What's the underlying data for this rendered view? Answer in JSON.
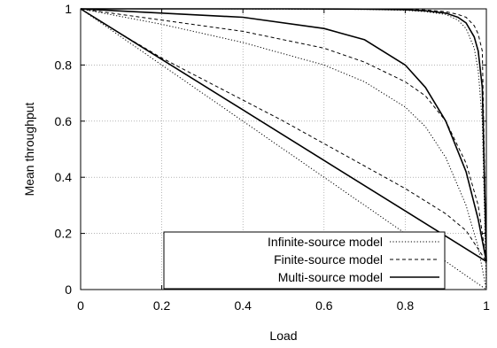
{
  "chart_data": {
    "type": "line",
    "xlabel": "Load",
    "ylabel": "Mean throughput",
    "xlim": [
      0,
      1
    ],
    "ylim": [
      0,
      1
    ],
    "xticks": [
      "0",
      "0.2",
      "0.4",
      "0.6",
      "0.8",
      "1"
    ],
    "yticks": [
      "0",
      "0.2",
      "0.4",
      "0.6",
      "0.8",
      "1"
    ],
    "grid": true,
    "legend_position": "bottom-right",
    "legend": [
      {
        "label": "Infinite-source model",
        "style": "dotted"
      },
      {
        "label": "Finite-source model",
        "style": "dashed"
      },
      {
        "label": "Multi-source model",
        "style": "solid"
      }
    ],
    "series": [
      {
        "model": "infinite",
        "style": "dotted",
        "x": [
          0,
          0.2,
          0.4,
          0.6,
          0.8,
          1.0
        ],
        "y": [
          1.0,
          0.8,
          0.6,
          0.4,
          0.2,
          0.0
        ]
      },
      {
        "model": "finite",
        "style": "dashed",
        "x": [
          0,
          0.1,
          0.2,
          0.3,
          0.4,
          0.5,
          0.6,
          0.7,
          0.8,
          0.9,
          0.95,
          1.0
        ],
        "y": [
          1.0,
          0.91,
          0.825,
          0.75,
          0.675,
          0.6,
          0.52,
          0.44,
          0.36,
          0.27,
          0.21,
          0.1
        ]
      },
      {
        "model": "multi",
        "style": "solid",
        "x": [
          0,
          0.2,
          0.4,
          0.6,
          0.8,
          1.0
        ],
        "y": [
          1.0,
          0.82,
          0.64,
          0.46,
          0.28,
          0.1
        ]
      },
      {
        "model": "infinite",
        "style": "dotted",
        "x": [
          0,
          0.2,
          0.4,
          0.6,
          0.7,
          0.8,
          0.85,
          0.9,
          0.95,
          0.98,
          1.0
        ],
        "y": [
          1.0,
          0.945,
          0.88,
          0.8,
          0.74,
          0.65,
          0.58,
          0.47,
          0.3,
          0.15,
          0.0
        ]
      },
      {
        "model": "finite",
        "style": "dashed",
        "x": [
          0,
          0.2,
          0.4,
          0.6,
          0.7,
          0.8,
          0.85,
          0.9,
          0.95,
          0.98,
          1.0
        ],
        "y": [
          1.0,
          0.96,
          0.92,
          0.86,
          0.81,
          0.74,
          0.69,
          0.6,
          0.45,
          0.3,
          0.1
        ]
      },
      {
        "model": "multi",
        "style": "solid",
        "x": [
          0,
          0.2,
          0.4,
          0.6,
          0.7,
          0.8,
          0.85,
          0.9,
          0.95,
          0.98,
          1.0
        ],
        "y": [
          1.0,
          0.985,
          0.97,
          0.93,
          0.89,
          0.8,
          0.72,
          0.6,
          0.42,
          0.25,
          0.1
        ]
      },
      {
        "model": "infinite",
        "style": "dotted",
        "x": [
          0,
          0.3,
          0.5,
          0.7,
          0.8,
          0.85,
          0.9,
          0.93,
          0.95,
          0.97,
          0.98,
          0.99,
          1.0
        ],
        "y": [
          1.0,
          1.0,
          0.999,
          0.998,
          0.995,
          0.99,
          0.98,
          0.96,
          0.93,
          0.86,
          0.78,
          0.6,
          0.0
        ]
      },
      {
        "model": "finite",
        "style": "dashed",
        "x": [
          0,
          0.3,
          0.5,
          0.7,
          0.8,
          0.85,
          0.9,
          0.93,
          0.95,
          0.97,
          0.98,
          0.99,
          1.0
        ],
        "y": [
          1.0,
          1.0,
          1.0,
          0.999,
          0.998,
          0.996,
          0.99,
          0.98,
          0.97,
          0.94,
          0.91,
          0.85,
          0.1
        ]
      },
      {
        "model": "multi",
        "style": "solid",
        "x": [
          0,
          0.3,
          0.5,
          0.7,
          0.8,
          0.85,
          0.9,
          0.93,
          0.95,
          0.97,
          0.98,
          0.99,
          1.0
        ],
        "y": [
          1.0,
          1.0,
          1.0,
          0.999,
          0.997,
          0.993,
          0.985,
          0.97,
          0.95,
          0.9,
          0.85,
          0.72,
          0.1
        ]
      }
    ]
  }
}
